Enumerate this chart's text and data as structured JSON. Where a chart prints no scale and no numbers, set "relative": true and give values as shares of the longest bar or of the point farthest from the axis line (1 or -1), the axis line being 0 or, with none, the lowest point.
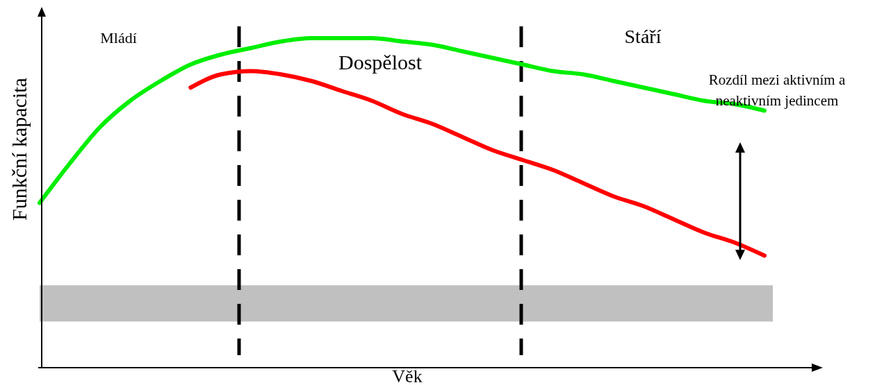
{
  "chart_data": {
    "type": "line",
    "relative": true,
    "xlabel": "Věk",
    "ylabel": "Funkční kapacita",
    "categories": [
      null,
      null,
      null,
      null,
      null,
      null,
      null,
      null,
      null,
      null,
      null,
      null,
      null,
      null,
      null,
      null,
      null,
      null,
      null,
      null,
      null,
      null,
      null,
      null,
      null
    ],
    "series": [
      {
        "color": "#00ee00",
        "values": [
          0.5,
          0.62,
          0.73,
          0.81,
          0.87,
          0.92,
          0.95,
          0.97,
          0.99,
          1.0,
          1.0,
          1.0,
          0.99,
          0.98,
          0.96,
          0.94,
          0.92,
          0.9,
          0.89,
          0.87,
          0.85,
          0.83,
          0.81,
          0.8,
          0.78
        ]
      },
      {
        "color": "#ff0000",
        "values": [
          null,
          null,
          null,
          null,
          null,
          0.85,
          0.89,
          0.9,
          0.89,
          0.87,
          0.84,
          0.81,
          0.77,
          0.74,
          0.7,
          0.66,
          0.63,
          0.6,
          0.56,
          0.52,
          0.49,
          0.45,
          0.41,
          0.38,
          0.34
        ]
      }
    ],
    "bands": [
      {
        "axis": "y",
        "from": 0.14,
        "to": 0.25,
        "color": "#c0c0c0"
      }
    ],
    "annotations": [
      "Mládí",
      "Dospělost",
      "Stáří",
      "Rozdíl mezi aktivním a neaktivním jedincem"
    ],
    "line_style": "solid",
    "marker": "none"
  }
}
